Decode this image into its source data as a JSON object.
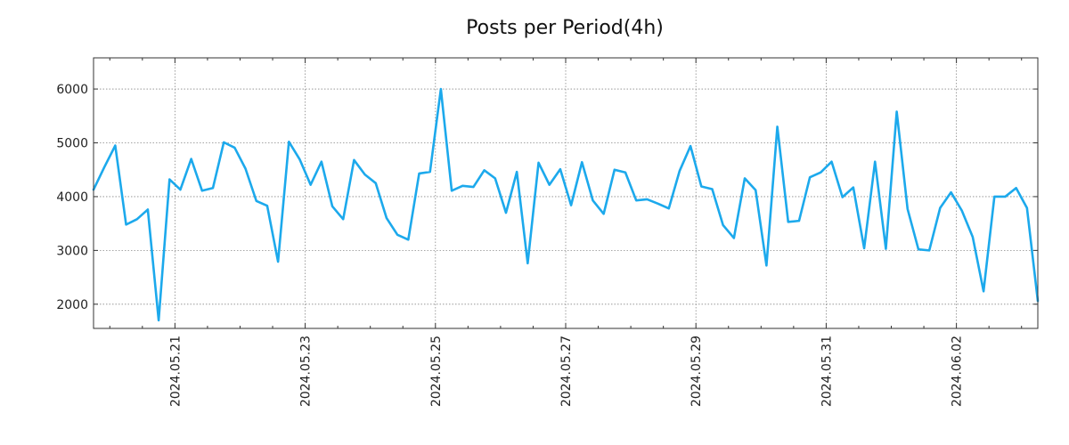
{
  "chart_data": {
    "type": "line",
    "title": "Posts per Period(4h)",
    "xlabel": "",
    "ylabel": "",
    "grid": true,
    "line_color": "#1ca9ec",
    "ylim": [
      1550,
      6580
    ],
    "y_ticks": [
      2000,
      3000,
      4000,
      5000,
      6000
    ],
    "y_tick_labels": [
      "2000",
      "3000",
      "4000",
      "5000",
      "6000"
    ],
    "x_ticks": [
      {
        "index": 7.5,
        "label": "2024.05.21"
      },
      {
        "index": 19.5,
        "label": "2024.05.23"
      },
      {
        "index": 31.5,
        "label": "2024.05.25"
      },
      {
        "index": 43.5,
        "label": "2024.05.27"
      },
      {
        "index": 55.5,
        "label": "2024.05.29"
      },
      {
        "index": 67.5,
        "label": "2024.05.31"
      },
      {
        "index": 79.5,
        "label": "2024.06.02"
      }
    ],
    "x_minor_ticks": [
      1.5,
      4.5,
      10.5,
      13.5,
      16.5,
      22.5,
      25.5,
      28.5,
      34.5,
      37.5,
      40.5,
      46.5,
      49.5,
      52.5,
      58.5,
      61.5,
      64.5,
      70.5,
      73.5,
      76.5,
      82.5,
      85.5
    ],
    "x_count": 88,
    "series": [
      {
        "name": "posts",
        "values": [
          4130,
          4550,
          4950,
          3480,
          3580,
          3760,
          1700,
          4320,
          4130,
          4700,
          4110,
          4160,
          5010,
          4910,
          4520,
          3920,
          3830,
          2790,
          5020,
          4690,
          4220,
          4650,
          3820,
          3580,
          4680,
          4410,
          4250,
          3600,
          3290,
          3200,
          4430,
          4460,
          6000,
          4110,
          4200,
          4180,
          4490,
          4340,
          3700,
          4460,
          2760,
          4630,
          4220,
          4510,
          3840,
          4640,
          3930,
          3680,
          4500,
          4450,
          3930,
          3950,
          3870,
          3780,
          4480,
          4940,
          4190,
          4140,
          3470,
          3230,
          4340,
          4120,
          2720,
          5300,
          3530,
          3550,
          4360,
          4450,
          4650,
          3990,
          4170,
          3040,
          4650,
          3030,
          5580,
          3770,
          3020,
          3000,
          3790,
          4080,
          3740,
          3250,
          2240,
          4000,
          4000,
          4160,
          3790,
          2060
        ]
      }
    ]
  }
}
